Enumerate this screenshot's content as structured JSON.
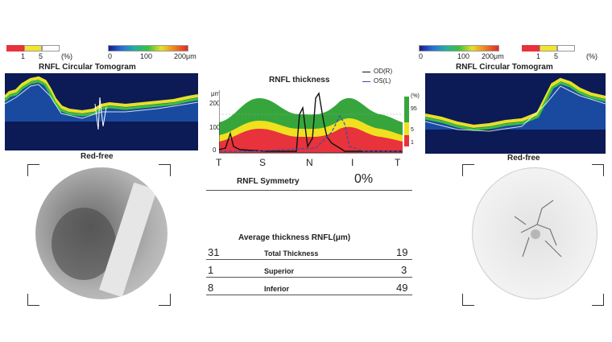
{
  "left": {
    "sig_scale": {
      "labels": [
        "1",
        "5",
        "(%)"
      ]
    },
    "thk_scale": {
      "labels": [
        "0",
        "100",
        "200μm"
      ]
    },
    "tomogram_title": "RNFL Circular Tomogram",
    "fundus_title": "Red-free"
  },
  "right": {
    "thk_scale": {
      "labels": [
        "0",
        "100",
        "200μm"
      ]
    },
    "sig_scale": {
      "labels": [
        "1",
        "5",
        "(%)"
      ]
    },
    "tomogram_title": "RNFL Circular Tomogram",
    "fundus_title": "Red-free"
  },
  "center": {
    "chart_title": "RNFL thickness",
    "legend": [
      {
        "label": "OD(R)",
        "color": "#111111"
      },
      {
        "label": "OS(L)",
        "color": "#3b4fa8"
      }
    ],
    "y_unit": "μm",
    "y_ticks": [
      "200",
      "100",
      "0"
    ],
    "x_ticks": [
      "T",
      "S",
      "N",
      "I",
      "T"
    ],
    "pct_labels": [
      "(%)",
      "95",
      "5",
      "1"
    ],
    "symmetry_label": "RNFL Symmetry",
    "symmetry_value": "0%",
    "avg_title": "Average thickness RNFL(μm)",
    "rows": [
      {
        "left": "31",
        "label": "Total Thickness",
        "right": "19"
      },
      {
        "left": "1",
        "label": "Superior",
        "right": "3"
      },
      {
        "left": "8",
        "label": "Inferior",
        "right": "49"
      }
    ]
  },
  "colors": {
    "normal_band": "#36a63c",
    "borderline_band": "#f0e020",
    "abnormal_band": "#e8323c",
    "od_line": "#111111",
    "os_line": "#3b4fa8"
  }
}
